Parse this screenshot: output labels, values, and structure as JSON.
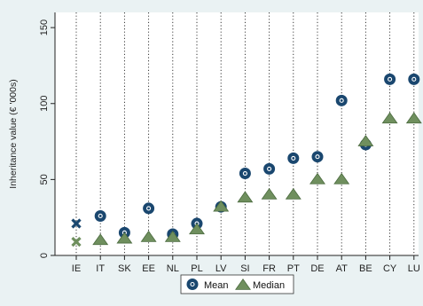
{
  "chart_data": {
    "type": "scatter",
    "title": "",
    "xlabel": "",
    "ylabel": "Inheritance value (€ '000s)",
    "ylim": [
      0,
      160
    ],
    "yticks": [
      0,
      50,
      100,
      150
    ],
    "grid": "vertical dotted lines at each category",
    "legend_placement": "bottom-center",
    "categories": [
      "IE",
      "IT",
      "SK",
      "EE",
      "NL",
      "PL",
      "LV",
      "SI",
      "FR",
      "PT",
      "DE",
      "AT",
      "BE",
      "CY",
      "LU"
    ],
    "series": [
      {
        "name": "Mean",
        "marker": "circle",
        "values": [
          21,
          26,
          15,
          31,
          14,
          21,
          32,
          54,
          57,
          64,
          65,
          102,
          73,
          116,
          116
        ]
      },
      {
        "name": "Median",
        "marker": "triangle",
        "values": [
          9,
          10,
          11,
          12,
          12,
          17,
          32,
          38,
          40,
          40,
          50,
          50,
          75,
          90,
          90
        ]
      }
    ],
    "special_markers": [
      {
        "category": "IE",
        "series": "Mean",
        "marker": "x"
      },
      {
        "category": "IE",
        "series": "Median",
        "marker": "x"
      }
    ],
    "colors": {
      "mean": "#1a476f",
      "median": "#6f8f5e",
      "median_outline": "#4a6a3e",
      "background": "#eaf2f3",
      "plot_area": "#ffffff",
      "grid": "#222222"
    }
  }
}
